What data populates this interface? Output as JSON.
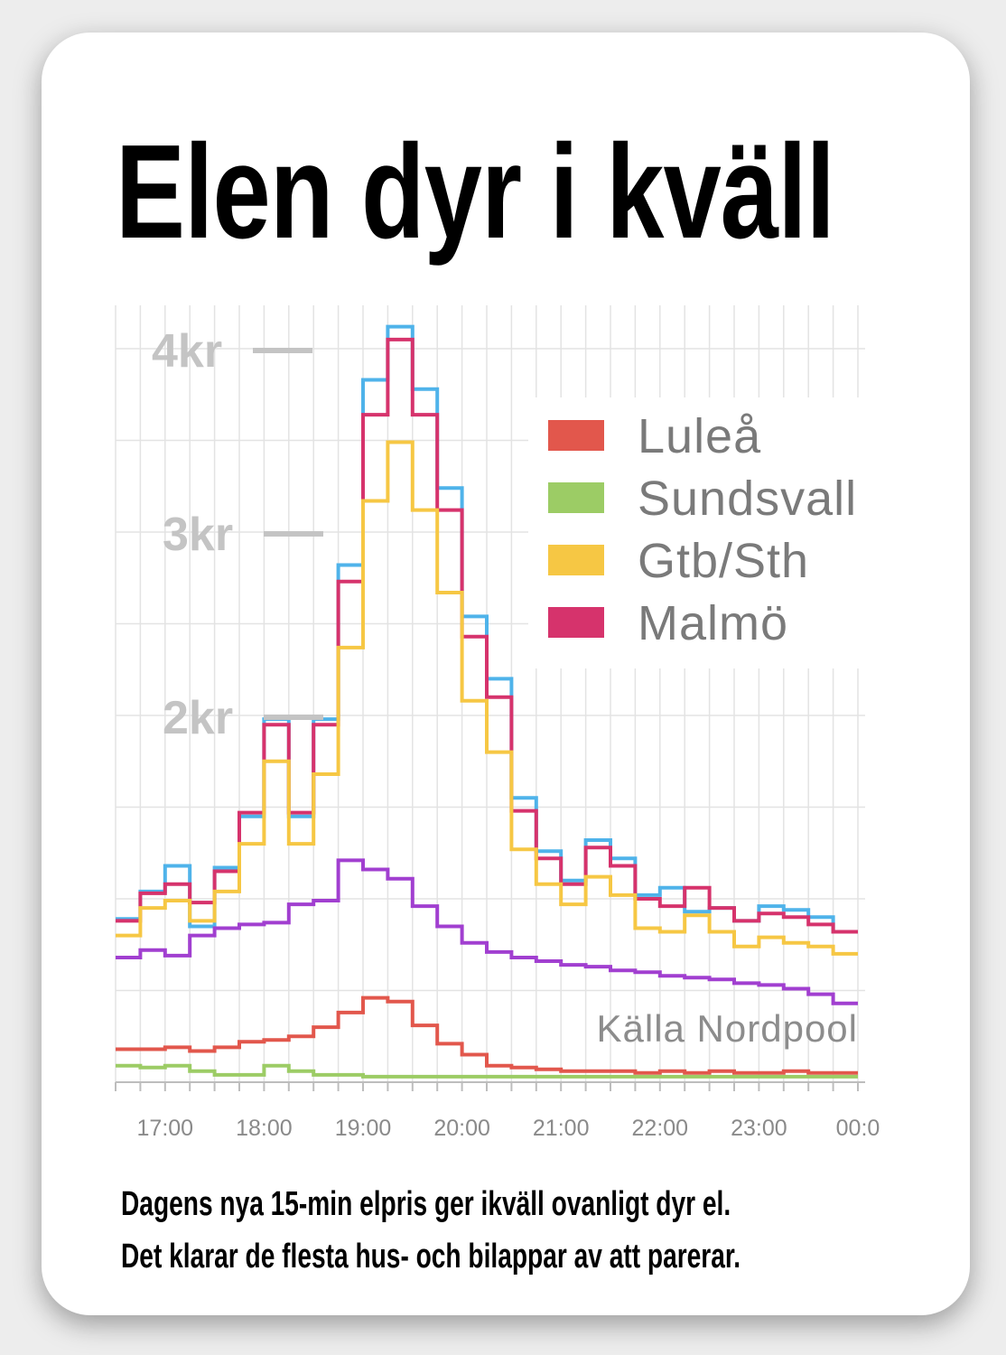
{
  "title": "Elen dyr i kväll",
  "caption": {
    "line1": "Dagens nya 15-min elpris ger ikväll ovanligt dyr el.",
    "line2": "Det klarar de flesta hus- och bilappar av att parerar."
  },
  "source_note": "Källa Nordpool",
  "colors": {
    "Luleå": "#e2574c",
    "Sundsvall": "#9ccc65",
    "Gtb/Sth": "#f6c744",
    "Malmö": "#d6336c",
    "unnamed_blue": "#4fb3ea",
    "unnamed_purple": "#a13fd0",
    "grid": "#e3e3e3",
    "ytick": "#c4c4c4",
    "xtick": "#8a8a8a"
  },
  "chart_data": {
    "type": "line",
    "step": true,
    "interval_minutes": 15,
    "x_start": "16:30",
    "xtick_labels": [
      "17:00",
      "18:00",
      "19:00",
      "20:00",
      "21:00",
      "22:00",
      "23:00",
      "00:0"
    ],
    "ytick_labels": [
      "4kr",
      "3kr",
      "2kr"
    ],
    "ytick_values": [
      4,
      3,
      2
    ],
    "ylim": [
      0,
      4.2
    ],
    "grid": true,
    "legend_position": "top-right",
    "series": [
      {
        "name": "",
        "color_key": "unnamed_blue",
        "values": [
          0.89,
          1.04,
          1.18,
          0.85,
          1.17,
          1.45,
          1.98,
          1.45,
          1.98,
          2.82,
          3.83,
          4.12,
          3.78,
          3.24,
          2.54,
          2.2,
          1.55,
          1.26,
          1.1,
          1.32,
          1.22,
          1.02,
          1.06,
          0.93,
          0.95,
          0.88,
          0.96,
          0.94,
          0.9,
          0.82
        ]
      },
      {
        "name": "Malmö",
        "color_key": "Malmö",
        "values": [
          0.88,
          1.03,
          1.08,
          0.98,
          1.15,
          1.47,
          1.95,
          1.47,
          1.95,
          2.73,
          3.64,
          4.05,
          3.64,
          3.12,
          2.43,
          2.1,
          1.48,
          1.22,
          1.08,
          1.28,
          1.18,
          1.0,
          0.96,
          1.06,
          0.95,
          0.88,
          0.92,
          0.9,
          0.86,
          0.82
        ]
      },
      {
        "name": "Gtb/Sth",
        "color_key": "Gtb/Sth",
        "values": [
          0.8,
          0.95,
          0.99,
          0.88,
          1.04,
          1.3,
          1.75,
          1.3,
          1.68,
          2.37,
          3.17,
          3.49,
          3.12,
          2.67,
          2.08,
          1.8,
          1.27,
          1.08,
          0.97,
          1.12,
          1.02,
          0.84,
          0.82,
          0.91,
          0.82,
          0.74,
          0.79,
          0.76,
          0.74,
          0.7
        ]
      },
      {
        "name": "",
        "color_key": "unnamed_purple",
        "values": [
          0.68,
          0.72,
          0.69,
          0.8,
          0.84,
          0.86,
          0.87,
          0.97,
          0.99,
          1.21,
          1.16,
          1.11,
          0.96,
          0.85,
          0.76,
          0.71,
          0.68,
          0.66,
          0.64,
          0.63,
          0.61,
          0.6,
          0.58,
          0.57,
          0.56,
          0.54,
          0.53,
          0.51,
          0.48,
          0.43
        ]
      },
      {
        "name": "Luleå",
        "color_key": "Luleå",
        "values": [
          0.18,
          0.18,
          0.19,
          0.17,
          0.19,
          0.22,
          0.23,
          0.25,
          0.3,
          0.38,
          0.46,
          0.44,
          0.31,
          0.21,
          0.15,
          0.09,
          0.08,
          0.07,
          0.06,
          0.06,
          0.06,
          0.05,
          0.06,
          0.05,
          0.06,
          0.05,
          0.05,
          0.06,
          0.05,
          0.05
        ]
      },
      {
        "name": "Sundsvall",
        "color_key": "Sundsvall",
        "values": [
          0.09,
          0.08,
          0.09,
          0.06,
          0.04,
          0.04,
          0.09,
          0.06,
          0.04,
          0.04,
          0.03,
          0.03,
          0.03,
          0.03,
          0.03,
          0.03,
          0.03,
          0.03,
          0.03,
          0.03,
          0.03,
          0.03,
          0.03,
          0.03,
          0.03,
          0.03,
          0.03,
          0.03,
          0.03,
          0.03
        ]
      }
    ],
    "legend": [
      "Luleå",
      "Sundsvall",
      "Gtb/Sth",
      "Malmö"
    ]
  }
}
